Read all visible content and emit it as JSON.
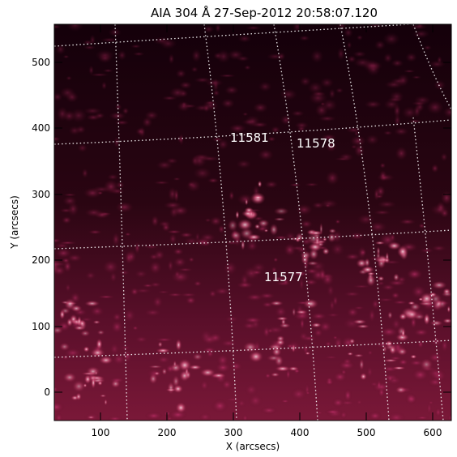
{
  "title": "AIA 304 Å 27-Sep-2012 20:58:07.120",
  "x_axis": {
    "label": "X (arcsecs)",
    "ticks": [
      "100",
      "200",
      "300",
      "400",
      "500",
      "600"
    ]
  },
  "y_axis": {
    "label": "Y (arcsecs)",
    "ticks": [
      "0",
      "100",
      "200",
      "300",
      "400",
      "500"
    ]
  },
  "active_regions": [
    {
      "label": "11581"
    },
    {
      "label": "11578"
    },
    {
      "label": "11577"
    }
  ],
  "colors": {
    "background_dark": "#1a0007",
    "plasma_mid": "#8a1840",
    "plasma_bright": "#ffd0dc",
    "grid_line": "#ffffff",
    "frame": "#000000"
  }
}
